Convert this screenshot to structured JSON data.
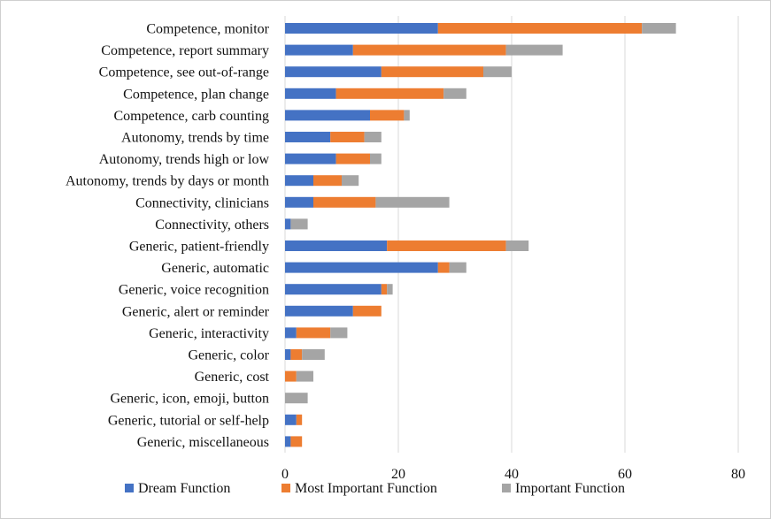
{
  "chart_data": {
    "type": "bar",
    "orientation": "horizontal",
    "stacked": true,
    "title": "",
    "xlabel": "",
    "ylabel": "",
    "xlim": [
      0,
      80
    ],
    "xticks": [
      0,
      20,
      40,
      60,
      80
    ],
    "grid": "vertical",
    "legend_position": "bottom",
    "categories": [
      "Competence, monitor",
      "Competence, report summary",
      "Competence, see out-of-range",
      "Competence, plan change",
      "Competence, carb counting",
      "Autonomy, trends by time",
      "Autonomy, trends high or low",
      "Autonomy, trends by days or month",
      "Connectivity, clinicians",
      "Connectivity, others",
      "Generic, patient-friendly",
      "Generic, automatic",
      "Generic, voice recognition",
      "Generic, alert or reminder",
      "Generic, interactivity",
      "Generic, color",
      "Generic, cost",
      "Generic, icon, emoji, button",
      "Generic, tutorial or self-help",
      "Generic, miscellaneous"
    ],
    "series": [
      {
        "name": "Dream Function",
        "color": "#4472C4",
        "values": [
          27,
          12,
          17,
          9,
          15,
          8,
          9,
          5,
          5,
          1,
          18,
          27,
          17,
          12,
          2,
          1,
          0,
          0,
          2,
          1
        ]
      },
      {
        "name": "Most Important Function",
        "color": "#ED7D31",
        "values": [
          36,
          27,
          18,
          19,
          6,
          6,
          6,
          5,
          11,
          0,
          21,
          2,
          1,
          5,
          6,
          2,
          2,
          0,
          1,
          2
        ]
      },
      {
        "name": "Important Function",
        "color": "#A5A5A5",
        "values": [
          6,
          10,
          5,
          4,
          1,
          3,
          2,
          3,
          13,
          3,
          4,
          3,
          1,
          0,
          3,
          4,
          3,
          4,
          0,
          0
        ]
      }
    ]
  }
}
